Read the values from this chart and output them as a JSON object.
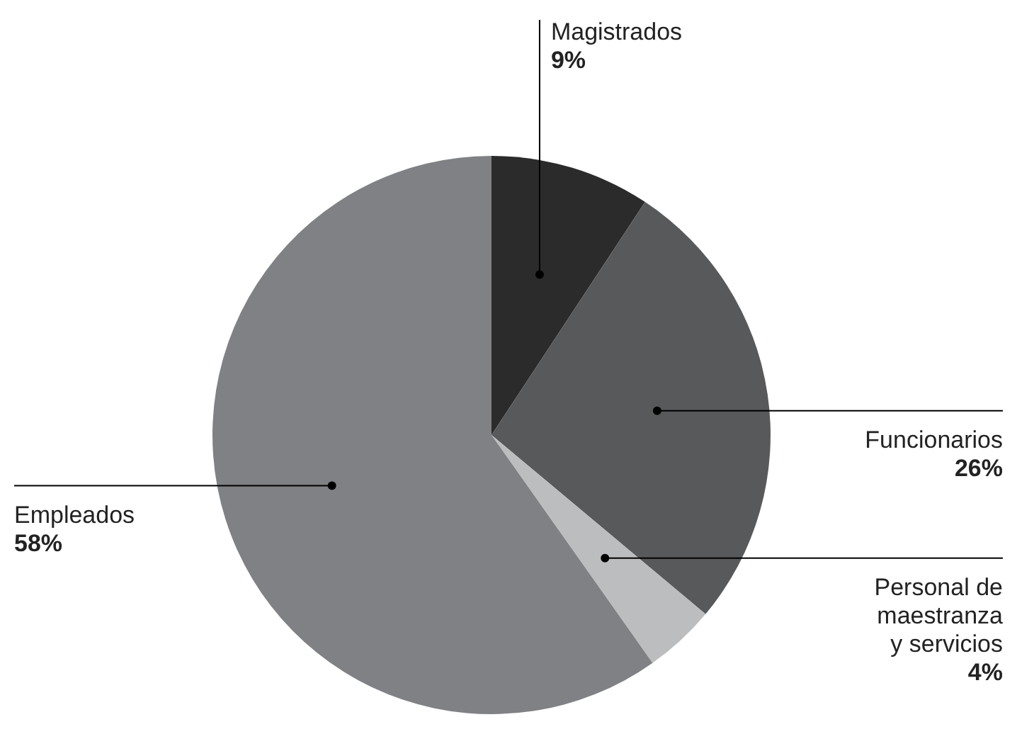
{
  "chart_data": {
    "type": "pie",
    "categories": [
      "Magistrados",
      "Funcionarios",
      "Personal de maestranza y servicios",
      "Empleados"
    ],
    "values": [
      9,
      26,
      4,
      58
    ],
    "value_labels": [
      "9%",
      "26%",
      "4%",
      "58%"
    ],
    "colors": [
      "#2b2b2b",
      "#58595b",
      "#bcbdbf",
      "#808184"
    ],
    "legend": false
  }
}
